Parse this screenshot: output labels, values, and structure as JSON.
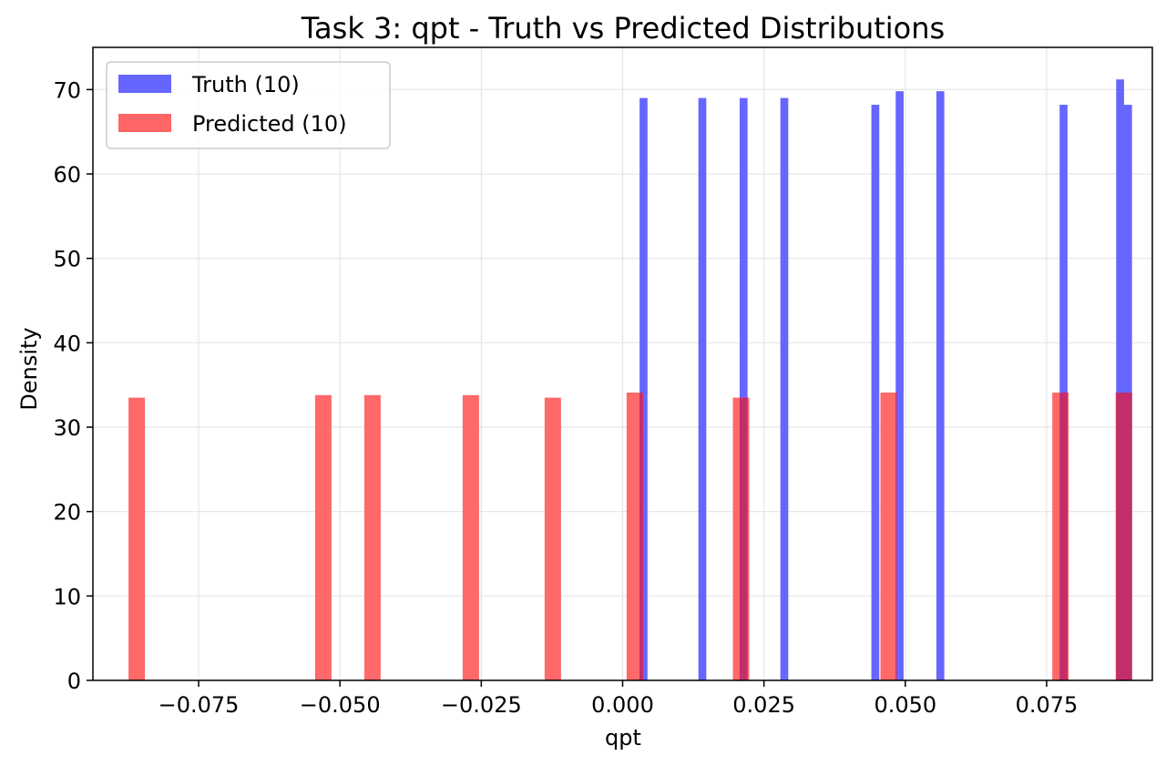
{
  "chart_data": {
    "type": "bar",
    "title": "Task 3: qpt - Truth vs Predicted Distributions",
    "xlabel": "qpt",
    "ylabel": "Density",
    "xlim": [
      -0.0937,
      0.0937
    ],
    "ylim": [
      0,
      75
    ],
    "xticks": [
      -0.075,
      -0.05,
      -0.025,
      0.0,
      0.025,
      0.05,
      0.075
    ],
    "xtick_labels": [
      "−0.075",
      "−0.050",
      "−0.025",
      "0.000",
      "0.025",
      "0.050",
      "0.075"
    ],
    "yticks": [
      0,
      10,
      20,
      30,
      40,
      50,
      60,
      70
    ],
    "ytick_labels": [
      "0",
      "10",
      "20",
      "30",
      "40",
      "50",
      "60",
      "70"
    ],
    "grid": true,
    "legend_position": "top-left",
    "series": [
      {
        "name": "Truth (10)",
        "color": "#6666ff",
        "bars": [
          {
            "x0": 0.003,
            "x1": 0.0044,
            "value": 69.0
          },
          {
            "x0": 0.0134,
            "x1": 0.0148,
            "value": 69.0
          },
          {
            "x0": 0.0207,
            "x1": 0.0221,
            "value": 69.0
          },
          {
            "x0": 0.0279,
            "x1": 0.0293,
            "value": 69.0
          },
          {
            "x0": 0.044,
            "x1": 0.0454,
            "value": 68.2
          },
          {
            "x0": 0.0483,
            "x1": 0.0497,
            "value": 69.8
          },
          {
            "x0": 0.0555,
            "x1": 0.0569,
            "value": 69.8
          },
          {
            "x0": 0.0773,
            "x1": 0.0787,
            "value": 68.2
          },
          {
            "x0": 0.0873,
            "x1": 0.0887,
            "value": 71.2
          },
          {
            "x0": 0.0887,
            "x1": 0.0901,
            "value": 68.2
          }
        ]
      },
      {
        "name": "Predicted (10)",
        "color": "#ff6666",
        "bars": [
          {
            "x0": -0.0874,
            "x1": -0.0845,
            "value": 33.5
          },
          {
            "x0": -0.0544,
            "x1": -0.0515,
            "value": 33.8
          },
          {
            "x0": -0.0457,
            "x1": -0.0428,
            "value": 33.8
          },
          {
            "x0": -0.0283,
            "x1": -0.0254,
            "value": 33.8
          },
          {
            "x0": -0.0138,
            "x1": -0.0109,
            "value": 33.5
          },
          {
            "x0": 0.0007,
            "x1": 0.0036,
            "value": 34.1
          },
          {
            "x0": 0.0195,
            "x1": 0.0224,
            "value": 33.5
          },
          {
            "x0": 0.0456,
            "x1": 0.0485,
            "value": 34.1
          },
          {
            "x0": 0.076,
            "x1": 0.0789,
            "value": 34.1
          },
          {
            "x0": 0.0872,
            "x1": 0.0901,
            "value": 34.1
          }
        ]
      }
    ]
  }
}
